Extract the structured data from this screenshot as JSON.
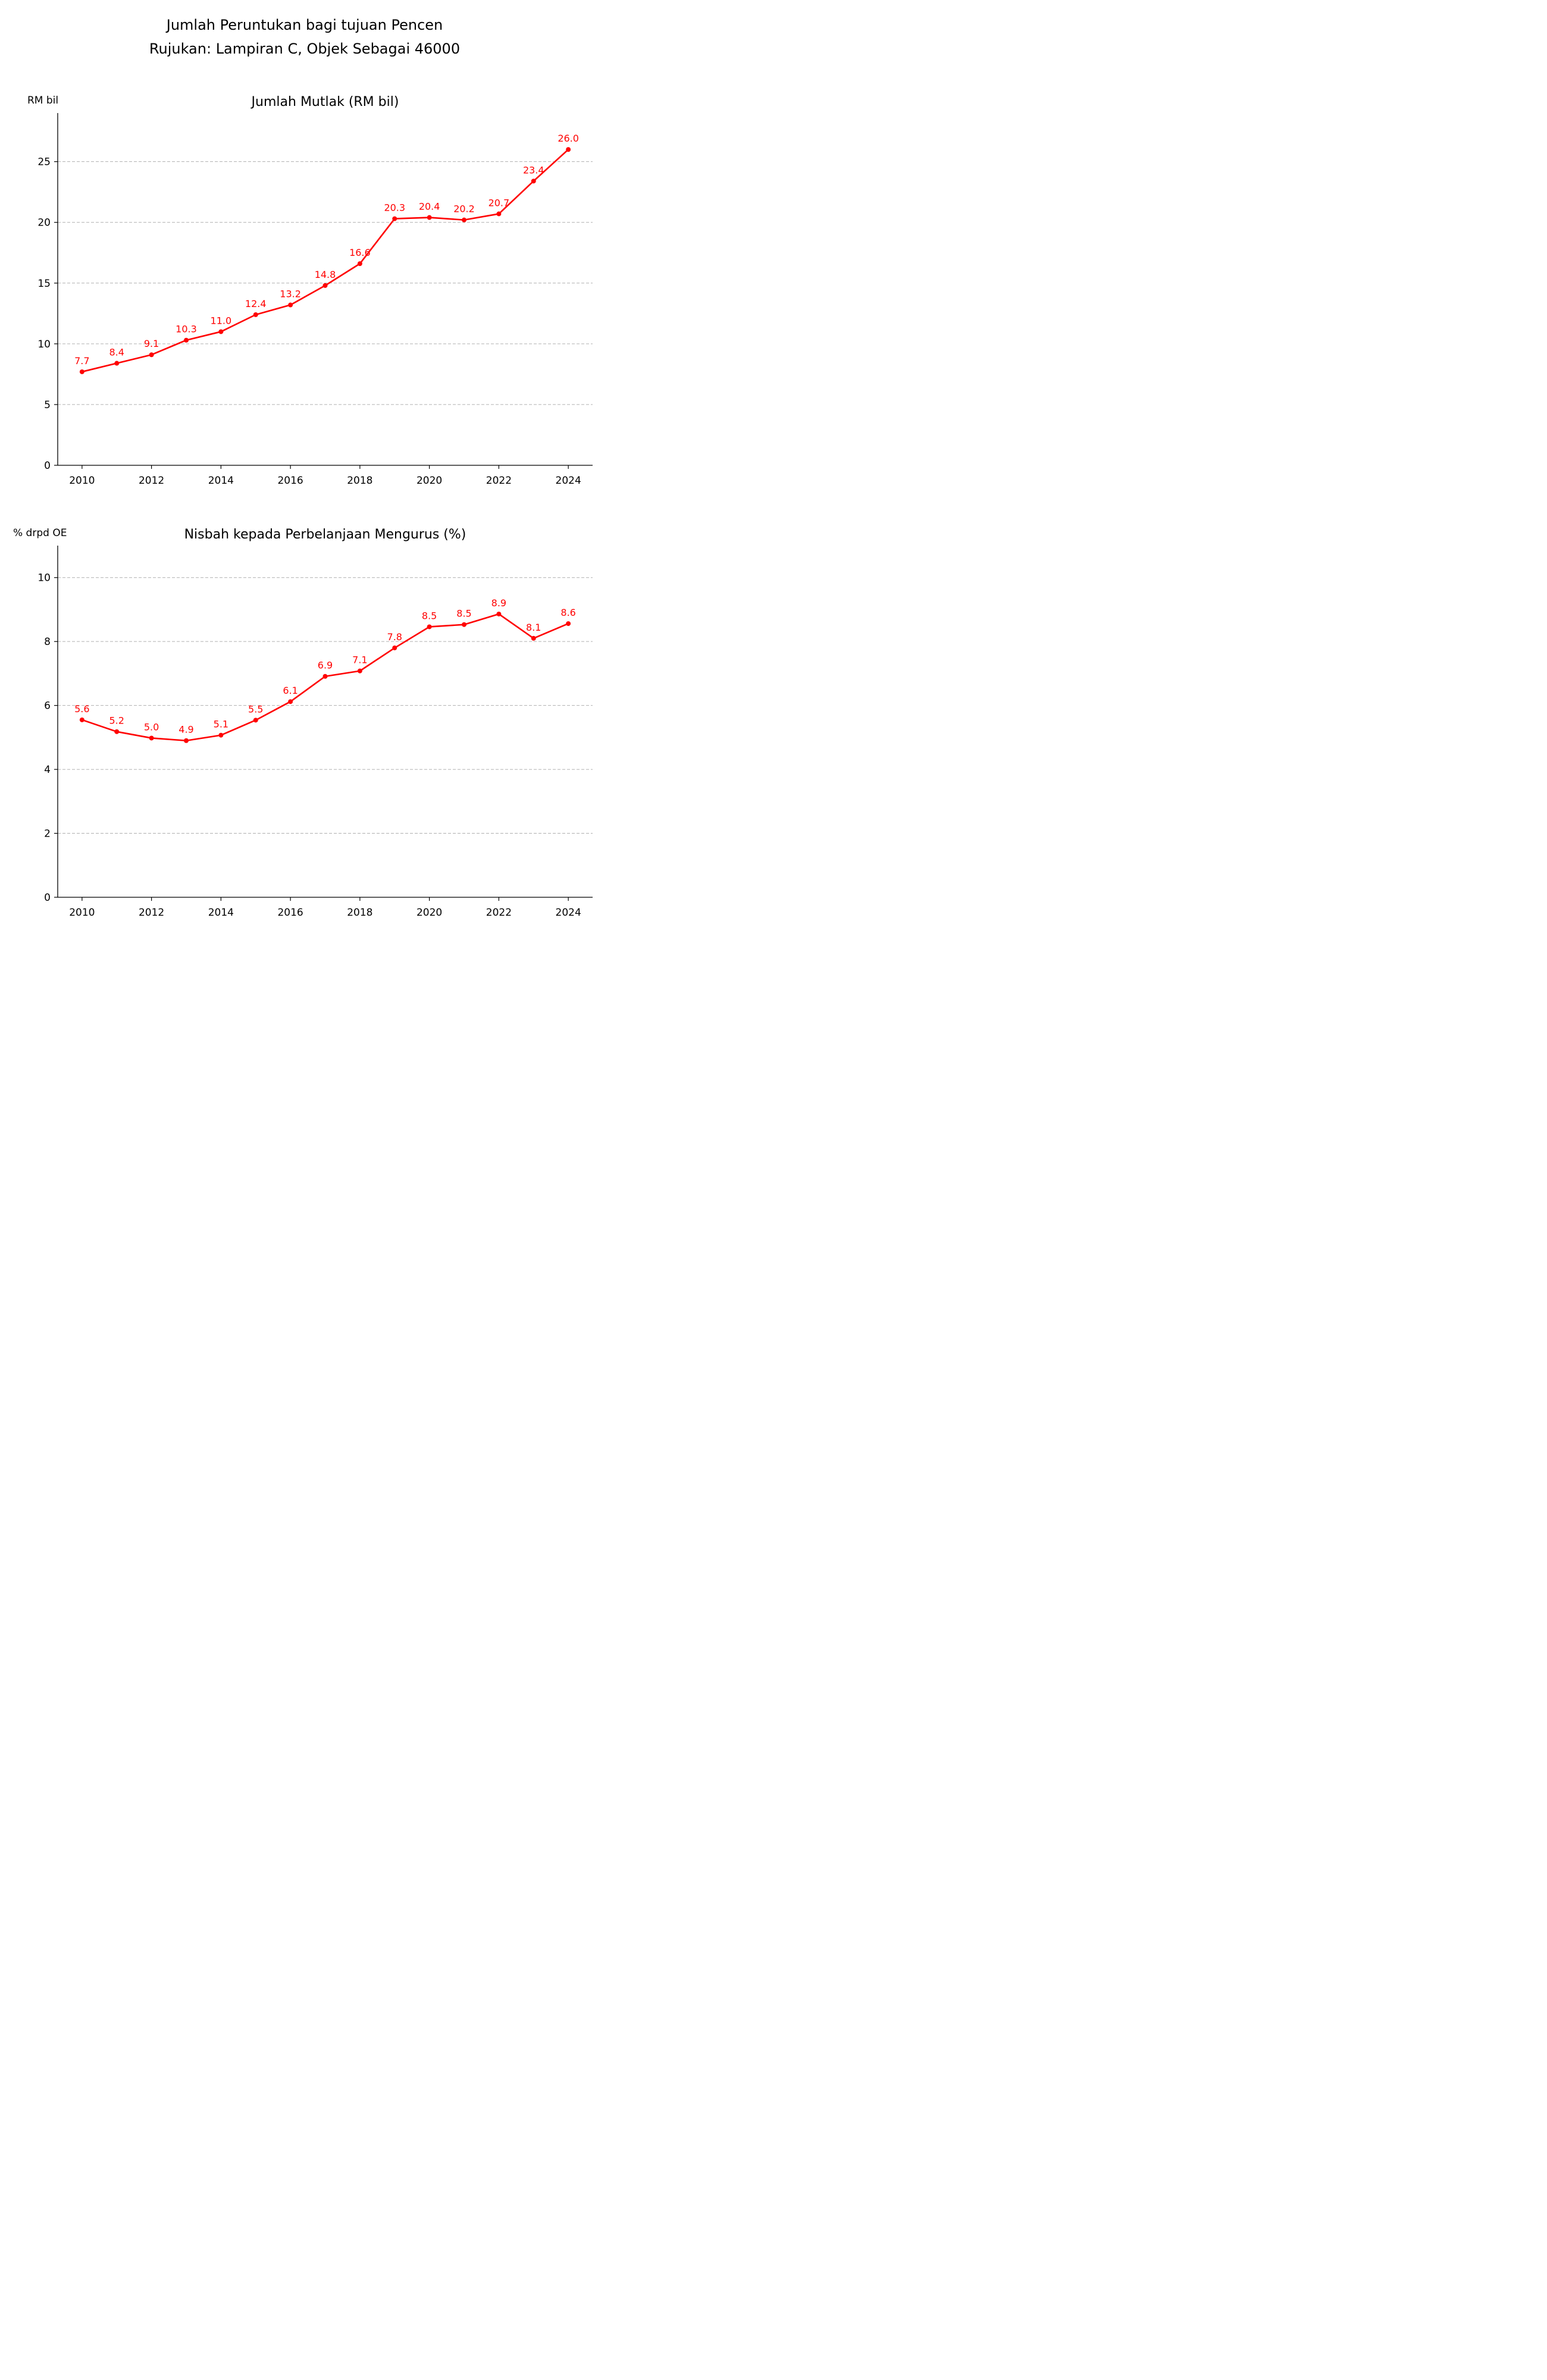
{
  "figure": {
    "title": "Jumlah Peruntukan bagi tujuan Pencen",
    "subtitle": "Rujukan: Lampiran C, Objek Sebagai 46000"
  },
  "colors": {
    "series": "#ff0000",
    "axis": "#000000",
    "grid": "#b0b0b0"
  },
  "chart_data": [
    {
      "type": "line",
      "title": "Jumlah Mutlak (RM bil)",
      "ylabel": "RM bil",
      "xlabel": "",
      "x": [
        2010,
        2011,
        2012,
        2013,
        2014,
        2015,
        2016,
        2017,
        2018,
        2019,
        2020,
        2021,
        2022,
        2023,
        2024
      ],
      "series": [
        {
          "values": [
            7.7,
            8.4,
            9.1,
            10.3,
            11.0,
            12.4,
            13.2,
            14.8,
            16.6,
            20.3,
            20.4,
            20.2,
            20.7,
            23.4,
            26.0
          ],
          "labels": [
            "7.7",
            "8.4",
            "9.1",
            "10.3",
            "11.0",
            "12.4",
            "13.2",
            "14.8",
            "16.6",
            "20.3",
            "20.4",
            "20.2",
            "20.7",
            "23.4",
            "26.0"
          ],
          "color": "#ff0000"
        }
      ],
      "xlim": [
        2009.3,
        2024.7
      ],
      "ylim": [
        0,
        29
      ],
      "xticks": [
        2010,
        2012,
        2014,
        2016,
        2018,
        2020,
        2022,
        2024
      ],
      "xtick_labels": [
        "2010",
        "2012",
        "2014",
        "2016",
        "2018",
        "2020",
        "2022",
        "2024"
      ],
      "yticks": [
        0,
        5,
        10,
        15,
        20,
        25
      ],
      "ytick_labels": [
        "0",
        "5",
        "10",
        "15",
        "20",
        "25"
      ],
      "grid": "y-dashed"
    },
    {
      "type": "line",
      "title": "Nisbah kepada Perbelanjaan Mengurus (%)",
      "ylabel": "% drpd OE",
      "xlabel": "",
      "x": [
        2010,
        2011,
        2012,
        2013,
        2014,
        2015,
        2016,
        2017,
        2018,
        2019,
        2020,
        2021,
        2022,
        2023,
        2024
      ],
      "series": [
        {
          "values": [
            5.55,
            5.18,
            4.98,
            4.9,
            5.07,
            5.54,
            6.12,
            6.91,
            7.08,
            7.8,
            8.46,
            8.53,
            8.86,
            8.1,
            8.56
          ],
          "labels": [
            "5.6",
            "5.2",
            "5.0",
            "4.9",
            "5.1",
            "5.5",
            "6.1",
            "6.9",
            "7.1",
            "7.8",
            "8.5",
            "8.5",
            "8.9",
            "8.1",
            "8.6"
          ],
          "color": "#ff0000"
        }
      ],
      "xlim": [
        2009.3,
        2024.7
      ],
      "ylim": [
        0,
        11
      ],
      "xticks": [
        2010,
        2012,
        2014,
        2016,
        2018,
        2020,
        2022,
        2024
      ],
      "xtick_labels": [
        "2010",
        "2012",
        "2014",
        "2016",
        "2018",
        "2020",
        "2022",
        "2024"
      ],
      "yticks": [
        0,
        2,
        4,
        6,
        8,
        10
      ],
      "ytick_labels": [
        "0",
        "2",
        "4",
        "6",
        "8",
        "10"
      ],
      "grid": "y-dashed"
    }
  ]
}
